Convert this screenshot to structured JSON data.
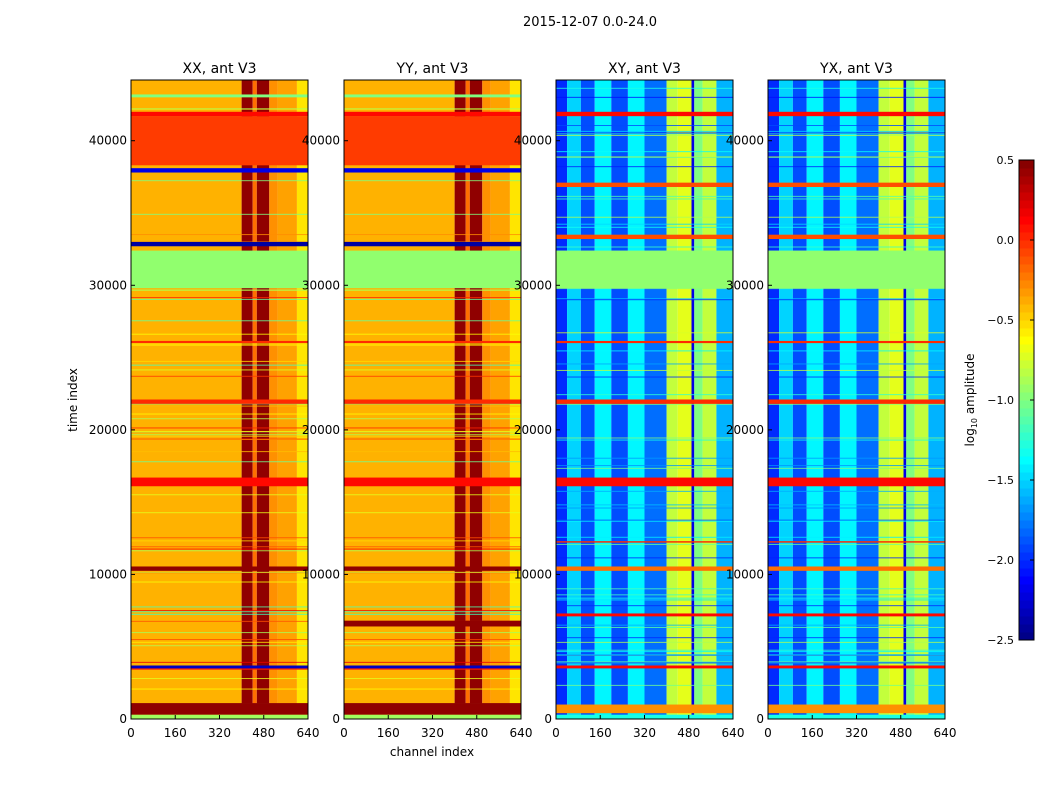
{
  "chart_data": {
    "type": "heatmap",
    "suptitle": "2015-12-07 0.0-24.0",
    "xlabel": "channel index",
    "ylabel": "time index",
    "xlim": [
      0,
      640
    ],
    "ylim": [
      0,
      44200
    ],
    "xticks": [
      "0",
      "160",
      "320",
      "480",
      "640"
    ],
    "xtick_values": [
      0,
      160,
      320,
      480,
      640
    ],
    "yticks": [
      "0",
      "10000",
      "20000",
      "30000",
      "40000"
    ],
    "ytick_values": [
      0,
      10000,
      20000,
      30000,
      40000
    ],
    "colorbar": {
      "label_prefix": "log",
      "label_sub": "10",
      "label_suffix": " amplitude",
      "range": [
        -2.5,
        0.5
      ],
      "ticks": [
        "0.5",
        "0.0",
        "−0.5",
        "−1.0",
        "−1.5",
        "−2.0",
        "−2.5"
      ],
      "tick_values": [
        0.5,
        0.0,
        -0.5,
        -1.0,
        -1.5,
        -2.0,
        -2.5
      ],
      "colormap": "jet"
    },
    "panels": [
      {
        "title": "XX, ant V3",
        "channel_profile": [
          [
            0,
            400,
            -0.4
          ],
          [
            400,
            440,
            0.45
          ],
          [
            440,
            455,
            -0.2
          ],
          [
            455,
            500,
            0.45
          ],
          [
            500,
            530,
            -0.3
          ],
          [
            530,
            600,
            -0.35
          ],
          [
            600,
            640,
            -0.55
          ]
        ],
        "time_bands": [
          [
            0,
            300,
            -0.9
          ],
          [
            300,
            1100,
            0.45
          ],
          [
            3500,
            3700,
            -2.3
          ],
          [
            10250,
            10550,
            0.45
          ],
          [
            16100,
            16700,
            0.1
          ],
          [
            21800,
            22100,
            0.0
          ],
          [
            26000,
            26150,
            0.0
          ],
          [
            29800,
            32400,
            -0.95
          ],
          [
            32700,
            33000,
            -2.4
          ],
          [
            37800,
            38100,
            -2.2
          ],
          [
            38300,
            41700,
            -0.05
          ],
          [
            41700,
            42000,
            0.1
          ],
          [
            43000,
            43200,
            -1.0
          ]
        ]
      },
      {
        "title": "YY, ant V3",
        "channel_profile": [
          [
            0,
            400,
            -0.4
          ],
          [
            400,
            440,
            0.45
          ],
          [
            440,
            455,
            -0.2
          ],
          [
            455,
            500,
            0.45
          ],
          [
            500,
            530,
            -0.3
          ],
          [
            530,
            600,
            -0.35
          ],
          [
            600,
            640,
            -0.55
          ]
        ],
        "time_bands": [
          [
            0,
            300,
            -0.9
          ],
          [
            300,
            1100,
            0.45
          ],
          [
            3500,
            3700,
            -2.3
          ],
          [
            6400,
            6800,
            0.45
          ],
          [
            10250,
            10550,
            0.45
          ],
          [
            16100,
            16700,
            0.1
          ],
          [
            21800,
            22100,
            0.0
          ],
          [
            26000,
            26150,
            0.0
          ],
          [
            29800,
            32400,
            -0.95
          ],
          [
            32700,
            33000,
            -2.4
          ],
          [
            37800,
            38100,
            -2.2
          ],
          [
            38300,
            41700,
            -0.05
          ],
          [
            41700,
            42000,
            0.1
          ],
          [
            43000,
            43200,
            -1.0
          ]
        ]
      },
      {
        "title": "XY, ant V3",
        "channel_profile": [
          [
            0,
            40,
            -2.0
          ],
          [
            40,
            90,
            -1.5
          ],
          [
            90,
            140,
            -1.9
          ],
          [
            140,
            200,
            -1.4
          ],
          [
            200,
            260,
            -1.9
          ],
          [
            260,
            320,
            -1.4
          ],
          [
            320,
            400,
            -1.8
          ],
          [
            400,
            440,
            -0.8
          ],
          [
            440,
            490,
            -0.7
          ],
          [
            490,
            500,
            -2.2
          ],
          [
            500,
            530,
            -1.0
          ],
          [
            530,
            580,
            -0.8
          ],
          [
            580,
            640,
            -1.6
          ]
        ],
        "time_bands": [
          [
            0,
            300,
            -1.3
          ],
          [
            400,
            1000,
            -0.3
          ],
          [
            3500,
            3700,
            0.1
          ],
          [
            7100,
            7300,
            0.1
          ],
          [
            10250,
            10550,
            -0.2
          ],
          [
            12200,
            12300,
            0.0
          ],
          [
            16100,
            16700,
            0.1
          ],
          [
            21800,
            22100,
            0.0
          ],
          [
            26000,
            26150,
            0.0
          ],
          [
            29800,
            32400,
            -0.95
          ],
          [
            33200,
            33500,
            -0.1
          ],
          [
            36800,
            37100,
            -0.1
          ],
          [
            41700,
            42000,
            0.1
          ]
        ]
      },
      {
        "title": "YX, ant V3",
        "channel_profile": [
          [
            0,
            40,
            -2.0
          ],
          [
            40,
            90,
            -1.5
          ],
          [
            90,
            140,
            -1.9
          ],
          [
            140,
            200,
            -1.4
          ],
          [
            200,
            260,
            -1.9
          ],
          [
            260,
            320,
            -1.4
          ],
          [
            320,
            400,
            -1.8
          ],
          [
            400,
            440,
            -0.8
          ],
          [
            440,
            490,
            -0.7
          ],
          [
            490,
            500,
            -2.2
          ],
          [
            500,
            530,
            -1.0
          ],
          [
            530,
            580,
            -0.8
          ],
          [
            580,
            640,
            -1.6
          ]
        ],
        "time_bands": [
          [
            0,
            300,
            -1.3
          ],
          [
            400,
            1000,
            -0.3
          ],
          [
            3500,
            3700,
            0.1
          ],
          [
            7100,
            7300,
            0.1
          ],
          [
            10250,
            10550,
            -0.2
          ],
          [
            12200,
            12300,
            0.0
          ],
          [
            16100,
            16700,
            0.1
          ],
          [
            21800,
            22100,
            0.0
          ],
          [
            26000,
            26150,
            0.0
          ],
          [
            29800,
            32400,
            -0.95
          ],
          [
            33200,
            33500,
            -0.1
          ],
          [
            36800,
            37100,
            -0.1
          ],
          [
            41700,
            42000,
            0.1
          ]
        ]
      }
    ]
  }
}
